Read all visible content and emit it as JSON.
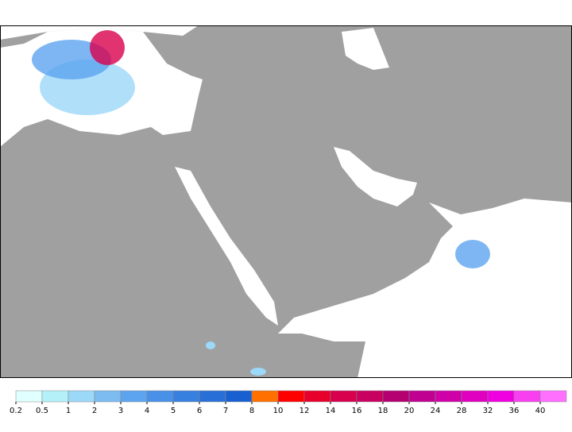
{
  "legend": {
    "levels": [
      0.2,
      0.5,
      1,
      2,
      3,
      4,
      5,
      6,
      7,
      8,
      10,
      12,
      14,
      16,
      18,
      20,
      24,
      28,
      32,
      36,
      40
    ],
    "colors": [
      "#e0ffff",
      "#b4f0f8",
      "#9cd8f8",
      "#7cbcf0",
      "#5ca4f0",
      "#4890e8",
      "#3880e0",
      "#2870d8",
      "#1860d0",
      "#ff7000",
      "#ff0000",
      "#e8002c",
      "#d8004c",
      "#c80060",
      "#b40070",
      "#c00090",
      "#d000a8",
      "#e000c0",
      "#f000e0",
      "#f840f0",
      "#ff70ff"
    ]
  }
}
